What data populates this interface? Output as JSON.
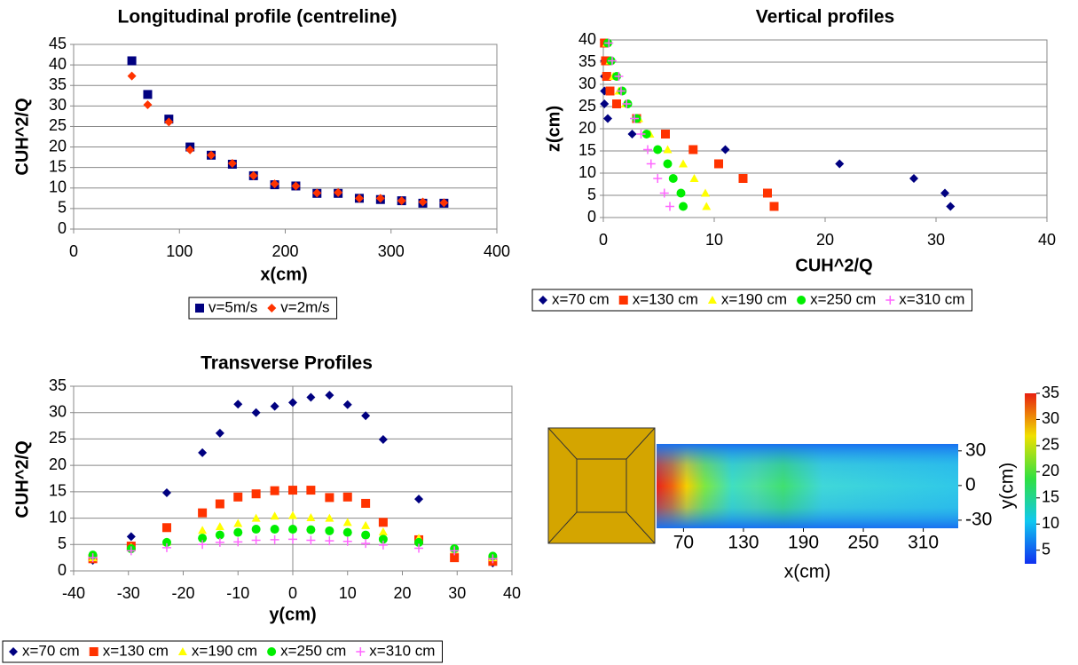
{
  "chart_data": [
    {
      "type": "scatter",
      "title": "Longitudinal profile (centreline)",
      "xlabel": "x(cm)",
      "ylabel": "CUH^2/Q",
      "x": [
        55,
        70,
        90,
        110,
        130,
        150,
        170,
        190,
        210,
        230,
        250,
        270,
        290,
        310,
        330,
        350
      ],
      "series": [
        {
          "name": "v=5m/s",
          "color": "#000080",
          "marker": "square",
          "values": [
            41,
            32.8,
            26.8,
            20,
            18,
            15.8,
            13,
            10.8,
            10.5,
            8.7,
            8.7,
            7.5,
            7.2,
            6.9,
            6.3,
            6.3
          ]
        },
        {
          "name": "v=2m/s",
          "color": "#ff3300",
          "marker": "diamond",
          "values": [
            37.3,
            30.3,
            26.1,
            19.3,
            18,
            16,
            13,
            11,
            10.5,
            8.8,
            8.9,
            7.5,
            7.5,
            6.9,
            6.6,
            6.4
          ]
        }
      ],
      "xlim": [
        0,
        400
      ],
      "xticks": [
        0,
        100,
        200,
        300,
        400
      ],
      "ylim": [
        0,
        45
      ],
      "yticks": [
        0,
        5,
        10,
        15,
        20,
        25,
        30,
        35,
        40,
        45
      ],
      "grid": true
    },
    {
      "type": "scatter",
      "title": "Vertical profiles",
      "xlabel": "CUH^2/Q",
      "ylabel": "z(cm)",
      "series": [
        {
          "name": "x=70 cm",
          "color": "#000080",
          "marker": "diamond",
          "x": [
            31.3,
            30.8,
            28,
            21.3,
            11,
            2.6,
            0.4,
            0.1,
            0.1,
            0.1,
            0.1,
            0.1
          ],
          "values": [
            2.5,
            5.5,
            8.8,
            12.1,
            15.3,
            18.8,
            22.3,
            25.6,
            28.5,
            31.8,
            35.3,
            39.3
          ]
        },
        {
          "name": "x=130 cm",
          "color": "#ff3300",
          "marker": "square",
          "x": [
            15.4,
            14.8,
            12.6,
            10.4,
            8.1,
            5.6,
            3,
            1.2,
            0.6,
            0.3,
            0.2,
            0.1
          ],
          "values": [
            2.5,
            5.5,
            8.8,
            12.1,
            15.3,
            18.8,
            22.3,
            25.6,
            28.5,
            31.8,
            35.3,
            39.3
          ]
        },
        {
          "name": "x=190 cm",
          "color": "#ffff00",
          "marker": "triangle",
          "x": [
            9.3,
            9.2,
            8.2,
            7.2,
            5.8,
            4.2,
            3.2,
            2,
            1.4,
            0.9,
            0.6,
            0.3
          ],
          "values": [
            2.5,
            5.5,
            8.8,
            12.1,
            15.3,
            18.8,
            22.3,
            25.6,
            28.5,
            31.8,
            35.3,
            39.3
          ]
        },
        {
          "name": "x=250 cm",
          "color": "#00ee00",
          "marker": "circle",
          "x": [
            7.2,
            7,
            6.3,
            5.8,
            4.9,
            3.9,
            3,
            2.2,
            1.7,
            1.2,
            0.7,
            0.4
          ],
          "values": [
            2.5,
            5.5,
            8.8,
            12.1,
            15.3,
            18.8,
            22.3,
            25.6,
            28.5,
            31.8,
            35.3,
            39.3
          ]
        },
        {
          "name": "x=310 cm",
          "color": "#ff66ff",
          "marker": "plus",
          "x": [
            6,
            5.5,
            4.9,
            4.3,
            4,
            3.4,
            2.8,
            2.1,
            1.6,
            1.4,
            0.8,
            0.5
          ],
          "values": [
            2.5,
            5.5,
            8.8,
            12.1,
            15.3,
            18.8,
            22.3,
            25.6,
            28.5,
            31.8,
            35.3,
            39.3
          ]
        }
      ],
      "xlim": [
        0,
        40
      ],
      "xticks": [
        0,
        10,
        20,
        30,
        40
      ],
      "ylim": [
        0,
        40
      ],
      "yticks": [
        0,
        5,
        10,
        15,
        20,
        25,
        30,
        35,
        40
      ],
      "grid": true
    },
    {
      "type": "scatter",
      "title": "Transverse Profiles",
      "xlabel": "y(cm)",
      "ylabel": "CUH^2/Q",
      "x": [
        -36.5,
        -29.5,
        -23,
        -16.5,
        -13.3,
        -10,
        -6.7,
        -3.3,
        0,
        3.3,
        6.7,
        10,
        13.3,
        16.5,
        23,
        29.5,
        36.5
      ],
      "series": [
        {
          "name": "x=70 cm",
          "color": "#000080",
          "marker": "diamond",
          "values": [
            2,
            6.5,
            14.8,
            22.4,
            26.1,
            31.6,
            30,
            31.2,
            31.9,
            32.9,
            33.3,
            31.5,
            29.4,
            24.9,
            13.6,
            null,
            1.5
          ]
        },
        {
          "name": "x=130 cm",
          "color": "#ff3300",
          "marker": "square",
          "values": [
            2.3,
            4.7,
            8.2,
            11,
            12.7,
            14,
            14.6,
            15.2,
            15.3,
            15.3,
            13.9,
            14,
            12.8,
            9.2,
            5.9,
            2.5,
            1.8
          ]
        },
        {
          "name": "x=190 cm",
          "color": "#ffff00",
          "marker": "triangle",
          "values": [
            2.5,
            4.5,
            5.5,
            7.7,
            8.4,
            9,
            10,
            10.4,
            10.5,
            10.1,
            10,
            9.2,
            8.6,
            7.4,
            6.2,
            4.1,
            2.5
          ]
        },
        {
          "name": "x=250 cm",
          "color": "#00ee00",
          "marker": "circle",
          "values": [
            3,
            4.2,
            5.4,
            6.2,
            6.8,
            7.3,
            7.9,
            7.9,
            7.9,
            7.8,
            7.6,
            7.3,
            6.8,
            6,
            5.4,
            4.2,
            2.8
          ]
        },
        {
          "name": "x=310 cm",
          "color": "#ff66ff",
          "marker": "plus",
          "values": [
            2.5,
            3.8,
            4.4,
            5,
            5.4,
            5.5,
            5.8,
            5.9,
            6,
            5.8,
            5.7,
            5.6,
            5.2,
            4.9,
            4.3,
            3.8,
            2.3
          ]
        }
      ],
      "xlim": [
        -40,
        40
      ],
      "xticks": [
        -40,
        -30,
        -20,
        -10,
        0,
        10,
        20,
        30,
        40
      ],
      "ylim": [
        0,
        35
      ],
      "yticks": [
        0,
        5,
        10,
        15,
        20,
        25,
        30,
        35
      ],
      "grid": true
    },
    {
      "type": "heatmap",
      "xlabel": "x(cm)",
      "ylabel": "y(cm)",
      "xlim": [
        43,
        345
      ],
      "xticks": [
        70,
        130,
        190,
        250,
        310
      ],
      "ylim": [
        -37,
        36
      ],
      "yticks": [
        30,
        0,
        -30
      ],
      "clim": [
        2.4,
        35
      ],
      "cticks": [
        5,
        10,
        15,
        20,
        25,
        30,
        35
      ]
    }
  ]
}
